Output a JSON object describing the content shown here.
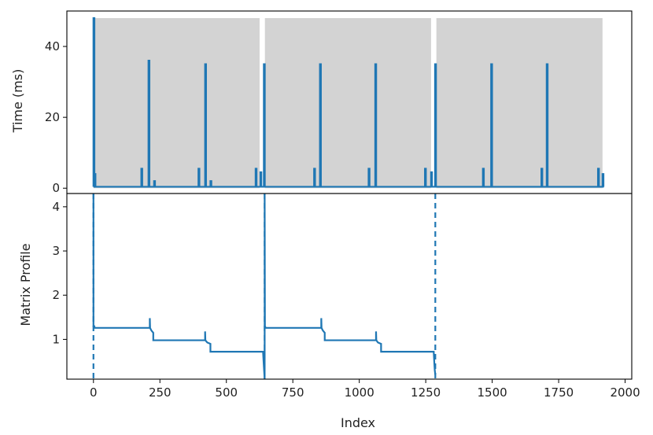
{
  "chart_data": {
    "type": "line",
    "shared_x": {
      "label": "Index",
      "range": [
        -100,
        2025
      ],
      "ticks": [
        0,
        250,
        500,
        750,
        1000,
        1250,
        1500,
        1750,
        2000
      ],
      "tick_labels": [
        "0",
        "250",
        "500",
        "750",
        "1000",
        "1250",
        "1500",
        "1750",
        "2000"
      ]
    },
    "panels": [
      {
        "id": "time",
        "ylabel": "Time (ms)",
        "ylim": [
          -1.5,
          50
        ],
        "yticks": [
          0,
          20,
          40
        ],
        "ytick_labels": [
          "0",
          "20",
          "40"
        ],
        "grid": false,
        "line_color": "#1f77b4",
        "shaded_regions": [
          [
            0,
            625
          ],
          [
            645,
            1270
          ],
          [
            1290,
            1915
          ]
        ],
        "shaded_region_top": 48,
        "shaded_color": "#d3d3d3",
        "baseline": 0.4,
        "spikes": [
          {
            "x": 0,
            "y": 48
          },
          {
            "x": 4,
            "y": 4
          },
          {
            "x": 180,
            "y": 5.5
          },
          {
            "x": 207,
            "y": 36
          },
          {
            "x": 228,
            "y": 2
          },
          {
            "x": 395,
            "y": 5.5
          },
          {
            "x": 420,
            "y": 35
          },
          {
            "x": 440,
            "y": 2
          },
          {
            "x": 610,
            "y": 5.5
          },
          {
            "x": 628,
            "y": 4.5
          },
          {
            "x": 641,
            "y": 35
          },
          {
            "x": 830,
            "y": 5.5
          },
          {
            "x": 852,
            "y": 35
          },
          {
            "x": 1035,
            "y": 5.5
          },
          {
            "x": 1060,
            "y": 35
          },
          {
            "x": 1247,
            "y": 5.5
          },
          {
            "x": 1270,
            "y": 4.5
          },
          {
            "x": 1285,
            "y": 35
          },
          {
            "x": 1465,
            "y": 5.5
          },
          {
            "x": 1496,
            "y": 35
          },
          {
            "x": 1685,
            "y": 5.5
          },
          {
            "x": 1705,
            "y": 35
          },
          {
            "x": 1898,
            "y": 5.5
          },
          {
            "x": 1915,
            "y": 4
          }
        ],
        "x_end": 1920
      },
      {
        "id": "profile",
        "ylabel": "Matrix Profile",
        "ylim": [
          0.1,
          4.3
        ],
        "yticks": [
          1,
          2,
          3,
          4
        ],
        "ytick_labels": [
          "1",
          "2",
          "3",
          "4"
        ],
        "grid": false,
        "line_color": "#1f77b4",
        "profile_points": [
          [
            0,
            4.3
          ],
          [
            0,
            1.3
          ],
          [
            3,
            1.3
          ],
          [
            5,
            1.26
          ],
          [
            212,
            1.26
          ],
          [
            212,
            1.48
          ],
          [
            213,
            1.26
          ],
          [
            218,
            1.2
          ],
          [
            225,
            1.15
          ],
          [
            225,
            0.98
          ],
          [
            420,
            0.98
          ],
          [
            420,
            1.18
          ],
          [
            421,
            0.98
          ],
          [
            428,
            0.93
          ],
          [
            440,
            0.9
          ],
          [
            440,
            0.72
          ],
          [
            638,
            0.72
          ],
          [
            640,
            0.5
          ],
          [
            642,
            0.3
          ],
          [
            643,
            0.2
          ],
          [
            644,
            0.1
          ],
          [
            644,
            4.3
          ],
          [
            645,
            1.3
          ],
          [
            648,
            1.26
          ],
          [
            857,
            1.26
          ],
          [
            857,
            1.48
          ],
          [
            858,
            1.26
          ],
          [
            863,
            1.2
          ],
          [
            870,
            1.15
          ],
          [
            870,
            0.98
          ],
          [
            1063,
            0.98
          ],
          [
            1063,
            1.18
          ],
          [
            1064,
            0.98
          ],
          [
            1070,
            0.93
          ],
          [
            1082,
            0.9
          ],
          [
            1082,
            0.72
          ],
          [
            1280,
            0.72
          ],
          [
            1282,
            0.5
          ],
          [
            1284,
            0.3
          ],
          [
            1286,
            0.2
          ]
        ],
        "dashed_lines": [
          0,
          644,
          1286
        ]
      }
    ]
  }
}
